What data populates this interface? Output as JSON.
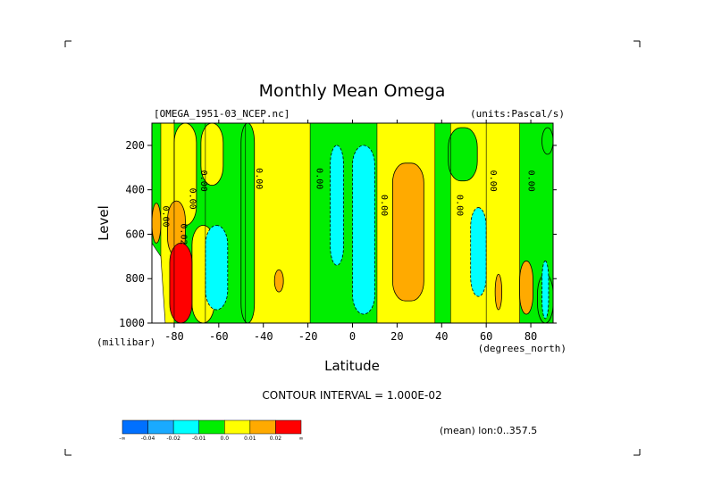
{
  "chart_data": {
    "type": "heatmap",
    "title": "Monthly Mean Omega",
    "dataset": "[OMEGA_1951-03_NCEP.nc]",
    "units": "(units:Pascal/s)",
    "xlabel": "Latitude",
    "xunits": "(degrees_north)",
    "ylabel": "Level",
    "yunits": "(millibar)",
    "xlim": [
      -90,
      90
    ],
    "ylim": [
      1000,
      100
    ],
    "x_ticks": [
      {
        "value": -80,
        "label": "-80"
      },
      {
        "value": -60,
        "label": "-60"
      },
      {
        "value": -40,
        "label": "-40"
      },
      {
        "value": -20,
        "label": "-20"
      },
      {
        "value": 0,
        "label": "0"
      },
      {
        "value": 20,
        "label": "20"
      },
      {
        "value": 40,
        "label": "40"
      },
      {
        "value": 60,
        "label": "60"
      },
      {
        "value": 80,
        "label": "80"
      }
    ],
    "y_ticks": [
      {
        "value": 200,
        "label": "200"
      },
      {
        "value": 400,
        "label": "400"
      },
      {
        "value": 600,
        "label": "600"
      },
      {
        "value": 800,
        "label": "800"
      },
      {
        "value": 1000,
        "label": "1000"
      }
    ],
    "contour_interval": "CONTOUR INTERVAL = 1.000E-02",
    "footer": "(mean) lon:0..357.5",
    "colorbar": {
      "bins": [
        {
          "label": "-0.04",
          "color": "#0070ff"
        },
        {
          "label": "-0.02",
          "color": "#1aaaff"
        },
        {
          "label": "-0.01",
          "color": "#00ffff"
        },
        {
          "label": "0.0",
          "color": "#00ee00"
        },
        {
          "label": "0.01",
          "color": "#ffff00"
        },
        {
          "label": "0.02",
          "color": "#ffaa00"
        },
        {
          "label": "",
          "color": "#ff0000"
        }
      ],
      "edge_labels": [
        "-∞",
        "∞"
      ],
      "tick_labels": [
        "-0.04",
        "-0.02",
        "-0.01",
        "0.0",
        "0.01",
        "0.02"
      ]
    },
    "colors": {
      "neg_strong": "#1aaaff",
      "neg_mid": "#00ffff",
      "near_zero": "#00ee00",
      "pos_weak": "#ffff00",
      "pos_mid": "#ffaa00",
      "pos_strong": "#ff0000"
    },
    "bands": [
      {
        "lat_min": -90,
        "lat_max": -86,
        "level_top": 100,
        "level_bottom": 1000,
        "class": "near_zero"
      },
      {
        "lat_min": -86,
        "lat_max": -80,
        "level_top": 100,
        "level_bottom": 1000,
        "class": "pos_weak"
      },
      {
        "lat_min": -80,
        "lat_max": -66,
        "level_top": 100,
        "level_bottom": 1000,
        "class": "near_zero"
      },
      {
        "lat_min": -66,
        "lat_max": -48,
        "level_top": 100,
        "level_bottom": 1000,
        "class": "near_zero"
      },
      {
        "lat_min": -48,
        "lat_max": -19,
        "level_top": 100,
        "level_bottom": 1000,
        "class": "pos_weak"
      },
      {
        "lat_min": -19,
        "lat_max": 11,
        "level_top": 100,
        "level_bottom": 1000,
        "class": "near_zero"
      },
      {
        "lat_min": 11,
        "lat_max": 37,
        "level_top": 100,
        "level_bottom": 1000,
        "class": "pos_weak"
      },
      {
        "lat_min": 37,
        "lat_max": 44,
        "level_top": 100,
        "level_bottom": 1000,
        "class": "near_zero"
      },
      {
        "lat_min": 44,
        "lat_max": 60,
        "level_top": 100,
        "level_bottom": 1000,
        "class": "pos_weak"
      },
      {
        "lat_min": 60,
        "lat_max": 75,
        "level_top": 100,
        "level_bottom": 1000,
        "class": "pos_weak"
      },
      {
        "lat_min": 75,
        "lat_max": 90,
        "level_top": 100,
        "level_bottom": 1000,
        "class": "near_zero"
      }
    ],
    "features": [
      {
        "class": "pos_weak",
        "lat_min": -80,
        "lat_max": -70,
        "level_top": 100,
        "level_bottom": 560
      },
      {
        "class": "pos_weak",
        "lat_min": -72,
        "lat_max": -62,
        "level_top": 560,
        "level_bottom": 1000
      },
      {
        "class": "pos_weak",
        "lat_min": -68,
        "lat_max": -58,
        "level_top": 100,
        "level_bottom": 380
      },
      {
        "class": "near_zero",
        "lat_min": -50,
        "lat_max": -44,
        "level_top": 100,
        "level_bottom": 1000
      },
      {
        "class": "neg_mid",
        "lat_min": -66,
        "lat_max": -56,
        "level_top": 560,
        "level_bottom": 940
      },
      {
        "class": "neg_mid",
        "lat_min": -10,
        "lat_max": -4,
        "level_top": 200,
        "level_bottom": 740
      },
      {
        "class": "neg_mid",
        "lat_min": 0,
        "lat_max": 10,
        "level_top": 200,
        "level_bottom": 960
      },
      {
        "class": "neg_mid",
        "lat_min": 53,
        "lat_max": 60,
        "level_top": 480,
        "level_bottom": 880
      },
      {
        "class": "pos_mid",
        "lat_min": 18,
        "lat_max": 32,
        "level_top": 280,
        "level_bottom": 900
      },
      {
        "class": "pos_mid",
        "lat_min": -83,
        "lat_max": -75,
        "level_top": 450,
        "level_bottom": 700
      },
      {
        "class": "pos_mid",
        "lat_min": 75,
        "lat_max": 81,
        "level_top": 720,
        "level_bottom": 960
      },
      {
        "class": "pos_mid",
        "lat_min": -35,
        "lat_max": -31,
        "level_top": 760,
        "level_bottom": 860
      },
      {
        "class": "pos_mid",
        "lat_min": 64,
        "lat_max": 67,
        "level_top": 780,
        "level_bottom": 940
      },
      {
        "class": "pos_mid",
        "lat_min": -90,
        "lat_max": -86,
        "level_top": 460,
        "level_bottom": 640
      },
      {
        "class": "pos_strong",
        "lat_min": -82,
        "lat_max": -72,
        "level_top": 640,
        "level_bottom": 1000
      },
      {
        "class": "near_zero",
        "lat_min": 43,
        "lat_max": 56,
        "level_top": 120,
        "level_bottom": 360
      },
      {
        "class": "near_zero",
        "lat_min": 85,
        "lat_max": 90,
        "level_top": 120,
        "level_bottom": 240
      },
      {
        "class": "near_zero",
        "lat_min": 83,
        "lat_max": 90,
        "level_top": 780,
        "level_bottom": 1000
      },
      {
        "class": "neg_mid",
        "lat_min": 85,
        "lat_max": 88,
        "level_top": 720,
        "level_bottom": 980
      }
    ],
    "contour_labels": [
      {
        "lat": -85,
        "level": 520,
        "text": "0.00"
      },
      {
        "lat": -73,
        "level": 440,
        "text": "0.00"
      },
      {
        "lat": -68,
        "level": 360,
        "text": "0.00"
      },
      {
        "lat": -43,
        "level": 350,
        "text": "0.00"
      },
      {
        "lat": -16,
        "level": 350,
        "text": "0.00"
      },
      {
        "lat": 13,
        "level": 470,
        "text": "0.00"
      },
      {
        "lat": 47,
        "level": 470,
        "text": "0.00"
      },
      {
        "lat": 62,
        "level": 360,
        "text": "0.00"
      },
      {
        "lat": 79,
        "level": 360,
        "text": "0.00"
      },
      {
        "lat": -77,
        "level": 600,
        "text": "0.02"
      }
    ]
  }
}
